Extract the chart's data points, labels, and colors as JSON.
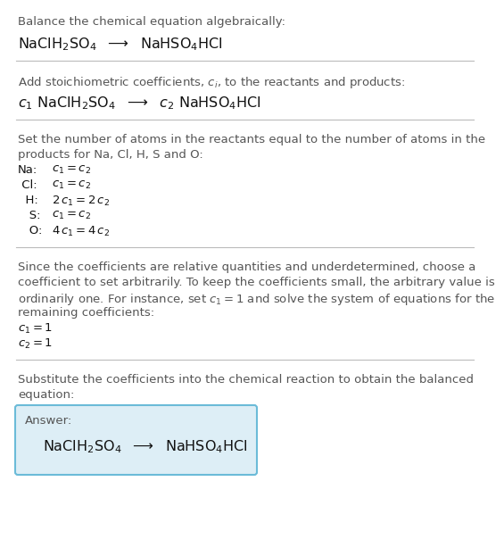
{
  "bg_color": "#ffffff",
  "gray_color": "#555555",
  "black_color": "#111111",
  "line_color": "#bbbbbb",
  "section1_title": "Balance the chemical equation algebraically:",
  "section1_eq": "NaClH$_2$SO$_4$  $\\longrightarrow$  NaHSO$_4$HCl",
  "section2_title": "Add stoichiometric coefficients, $c_i$, to the reactants and products:",
  "section2_eq": "$c_1$ NaClH$_2$SO$_4$  $\\longrightarrow$  $c_2$ NaHSO$_4$HCl",
  "section3_title_lines": [
    "Set the number of atoms in the reactants equal to the number of atoms in the",
    "products for Na, Cl, H, S and O:"
  ],
  "section3_equations": [
    [
      "Na:",
      "$c_1 = c_2$"
    ],
    [
      " Cl:",
      "$c_1 = c_2$"
    ],
    [
      "  H:",
      "$2\\,c_1 = 2\\,c_2$"
    ],
    [
      "   S:",
      "$c_1 = c_2$"
    ],
    [
      "   O:",
      "$4\\,c_1 = 4\\,c_2$"
    ]
  ],
  "section4_title_lines": [
    "Since the coefficients are relative quantities and underdetermined, choose a",
    "coefficient to set arbitrarily. To keep the coefficients small, the arbitrary value is",
    "ordinarily one. For instance, set $c_1 = 1$ and solve the system of equations for the",
    "remaining coefficients:"
  ],
  "section4_vals": [
    "$c_1 = 1$",
    "$c_2 = 1$"
  ],
  "section5_title_lines": [
    "Substitute the coefficients into the chemical reaction to obtain the balanced",
    "equation:"
  ],
  "answer_label": "Answer:",
  "answer_eq": "NaClH$_2$SO$_4$  $\\longrightarrow$  NaHSO$_4$HCl",
  "answer_box_face": "#ddeef6",
  "answer_box_edge": "#6bbbd8",
  "fs_small": 9.5,
  "fs_eq": 11.5,
  "fs_body": 9.5
}
